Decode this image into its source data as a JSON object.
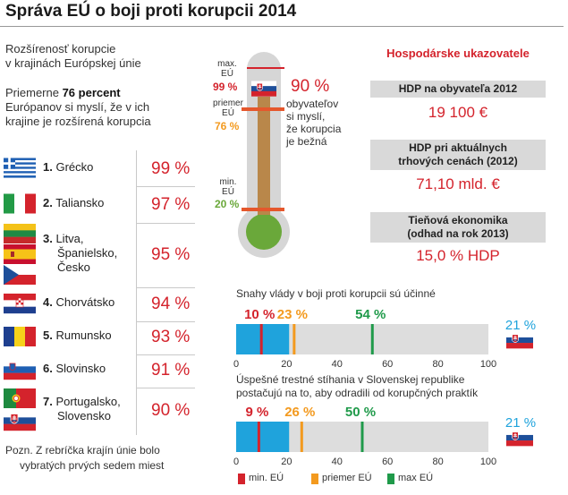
{
  "title": "Správa EÚ o boji proti korupcii 2014",
  "intro": {
    "line1": "Rozšírenosť korupcie",
    "line2": "v krajinách Európskej únie",
    "p2_pre": "Priemerne ",
    "p2_bold": "76 percent",
    "p2_line2": "Európanov si myslí, že v ich",
    "p2_line3": "krajine je rozšírená korupcia"
  },
  "ranking": [
    {
      "rank": "1.",
      "name": [
        "Grécko"
      ],
      "pct": "99 %",
      "flags": [
        "greece"
      ]
    },
    {
      "rank": "2.",
      "name": [
        "Taliansko"
      ],
      "pct": "97 %",
      "flags": [
        "italy"
      ]
    },
    {
      "rank": "3.",
      "name": [
        "Litva,",
        "Španielsko,",
        "Česko"
      ],
      "pct": "95 %",
      "flags": [
        "lithuania",
        "spain",
        "czech"
      ]
    },
    {
      "rank": "4.",
      "name": [
        "Chorvátsko"
      ],
      "pct": "94 %",
      "flags": [
        "croatia"
      ]
    },
    {
      "rank": "5.",
      "name": [
        "Rumunsko"
      ],
      "pct": "93 %",
      "flags": [
        "romania"
      ]
    },
    {
      "rank": "6.",
      "name": [
        "Slovinsko"
      ],
      "pct": "91 %",
      "flags": [
        "slovenia"
      ]
    },
    {
      "rank": "7.",
      "name": [
        "Portugalsko,",
        "Slovensko"
      ],
      "pct": "90 %",
      "flags": [
        "portugal",
        "slovakia"
      ]
    }
  ],
  "note": {
    "line1": "Pozn. Z rebríčka krajín únie bolo",
    "line2": "vybratých prvých sedem miest"
  },
  "thermometer": {
    "max_label": "max. EÚ",
    "max_pct": "99 %",
    "avg_label": "priemer EÚ",
    "avg_pct": "76 %",
    "min_label": "min. EÚ",
    "min_pct": "20 %",
    "sk_pct": "90 %",
    "sk_text": [
      "obyvateľov",
      "si myslí,",
      "že korupcia",
      "je bežná"
    ],
    "values": {
      "max": 99,
      "avg": 76,
      "min": 20,
      "sk": 90
    }
  },
  "economy": {
    "title": "Hospodárske ukazovatele",
    "items": [
      {
        "label": [
          "HDP na obyvateľa 2012"
        ],
        "value": "19 100 €"
      },
      {
        "label": [
          "HDP pri aktuálnych",
          "trhových cenách (2012)"
        ],
        "value": "71,10 mld. €"
      },
      {
        "label": [
          "Tieňová ekonomika",
          "(odhad na rok 2013)"
        ],
        "value": "15,0 % HDP"
      }
    ]
  },
  "colors": {
    "red": "#d4232c",
    "orange": "#f39a1f",
    "green": "#1f9a4a",
    "blue": "#1fa3dc",
    "gray_track": "#dddddd",
    "thermo_brown": "#b9874a",
    "thermo_green": "#6aa83a"
  },
  "chart_data": [
    {
      "type": "bar",
      "title": "Snahy vlády v boji proti korupcii sú účinné",
      "xlim": [
        0,
        100
      ],
      "ticks": [
        "0",
        "20",
        "40",
        "60",
        "80",
        "100"
      ],
      "slovakia": 21,
      "slovakia_label": "21 %",
      "markers": [
        {
          "name": "min. EÚ",
          "value": 10,
          "label": "10 %"
        },
        {
          "name": "priemer EÚ",
          "value": 23,
          "label": "23 %"
        },
        {
          "name": "max EÚ",
          "value": 54,
          "label": "54 %"
        }
      ]
    },
    {
      "type": "bar",
      "title": "Úspešné trestné stíhania v Slovenskej republike postačujú na to, aby odradili od korupčných praktík",
      "title_lines": [
        "Úspešné trestné stíhania v Slovenskej republike",
        "postačujú na to, aby odradili od korupčných praktík"
      ],
      "xlim": [
        0,
        100
      ],
      "ticks": [
        "0",
        "20",
        "40",
        "60",
        "80",
        "100"
      ],
      "slovakia": 21,
      "slovakia_label": "21 %",
      "markers": [
        {
          "name": "min. EÚ",
          "value": 9,
          "label": "9 %"
        },
        {
          "name": "priemer EÚ",
          "value": 26,
          "label": "26 %"
        },
        {
          "name": "max EÚ",
          "value": 50,
          "label": "50 %"
        }
      ]
    }
  ],
  "legend": [
    {
      "label": "min. EÚ",
      "color": "#d4232c"
    },
    {
      "label": "priemer EÚ",
      "color": "#f39a1f"
    },
    {
      "label": "max EÚ",
      "color": "#1f9a4a"
    }
  ]
}
